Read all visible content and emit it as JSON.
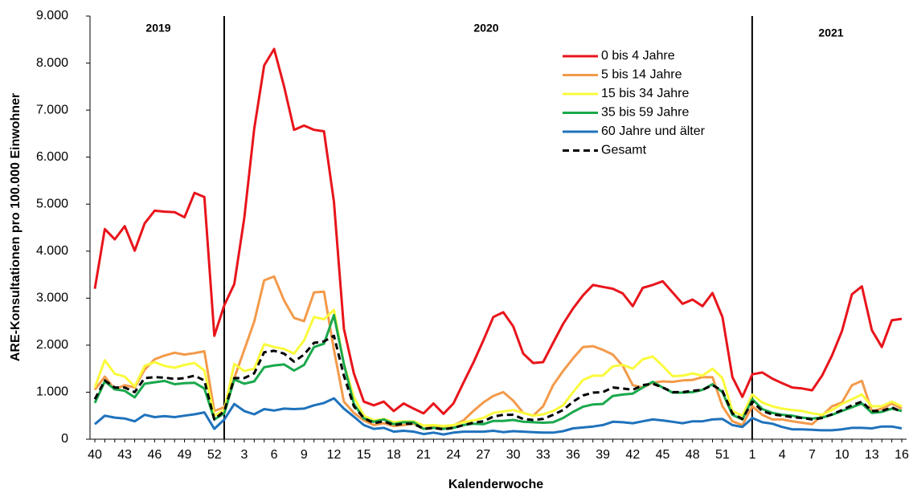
{
  "chart_data": {
    "type": "line",
    "y_label": "ARE-Konsultationen pro 100.000 Einwohner",
    "x_label": "Kalenderwoche",
    "annotations": [
      "2019",
      "2020",
      "2021"
    ],
    "categories": [
      "40",
      null,
      null,
      "43",
      null,
      null,
      "46",
      null,
      null,
      "49",
      null,
      null,
      "52",
      null,
      null,
      "3",
      null,
      null,
      "6",
      null,
      null,
      "9",
      null,
      null,
      "12",
      null,
      null,
      "15",
      null,
      null,
      "18",
      null,
      null,
      "21",
      null,
      null,
      "24",
      null,
      null,
      "27",
      null,
      null,
      "30",
      null,
      null,
      "33",
      null,
      null,
      "36",
      null,
      null,
      "39",
      null,
      null,
      "42",
      null,
      null,
      "45",
      null,
      null,
      "48",
      null,
      null,
      "51",
      null,
      null,
      "1",
      null,
      null,
      "4",
      null,
      null,
      "7",
      null,
      null,
      "10",
      null,
      null,
      "13",
      null,
      null,
      "16"
    ],
    "ylim": [
      0,
      9000
    ],
    "yticks": [
      0,
      {
        "value": 1000,
        "label": "1.000"
      },
      {
        "value": 2000,
        "label": "2.000"
      },
      {
        "value": 3000,
        "label": "3.000"
      },
      {
        "value": 4000,
        "label": "4.000"
      },
      {
        "value": 5000,
        "label": "5.000"
      },
      {
        "value": 6000,
        "label": "6.000"
      },
      {
        "value": 7000,
        "label": "7.000"
      },
      {
        "value": 8000,
        "label": "8.000"
      },
      {
        "value": 9000,
        "label": "9.000"
      }
    ],
    "legend_position": "upper right",
    "series": [
      {
        "name": "0 bis 4 Jahre",
        "color": "#e8141b",
        "values": [
          3200,
          4470,
          4250,
          4530,
          4010,
          4590,
          4860,
          4840,
          4830,
          4720,
          5240,
          5150,
          2200,
          2850,
          3300,
          4700,
          6600,
          7950,
          8300,
          7500,
          6580,
          6670,
          6580,
          6550,
          5050,
          2350,
          1400,
          800,
          720,
          800,
          600,
          760,
          650,
          550,
          760,
          540,
          760,
          1200,
          1630,
          2100,
          2600,
          2700,
          2400,
          1820,
          1620,
          1640,
          2050,
          2450,
          2780,
          3060,
          3280,
          3240,
          3200,
          3100,
          2830,
          3220,
          3280,
          3360,
          3120,
          2880,
          2970,
          2830,
          3110,
          2600,
          1320,
          900,
          1380,
          1420,
          1290,
          1190,
          1100,
          1080,
          1040,
          1350,
          1780,
          2300,
          3080,
          3250,
          2320,
          1960,
          2530,
          2560
        ]
      },
      {
        "name": "5 bis 14 Jahre",
        "color": "#f39a4a",
        "values": [
          1050,
          1330,
          1060,
          1150,
          1100,
          1480,
          1700,
          1780,
          1840,
          1800,
          1830,
          1870,
          600,
          680,
          1300,
          1900,
          2500,
          3380,
          3460,
          2950,
          2580,
          2510,
          3120,
          3140,
          1900,
          800,
          560,
          400,
          300,
          340,
          280,
          300,
          330,
          220,
          270,
          250,
          290,
          400,
          600,
          780,
          920,
          1000,
          820,
          560,
          500,
          700,
          1150,
          1450,
          1720,
          1960,
          1980,
          1900,
          1800,
          1560,
          1150,
          1100,
          1200,
          1230,
          1220,
          1250,
          1260,
          1320,
          1320,
          700,
          380,
          300,
          700,
          520,
          420,
          420,
          380,
          350,
          320,
          500,
          700,
          780,
          1150,
          1240,
          600,
          650,
          760,
          650
        ]
      },
      {
        "name": "15 bis 34 Jahre",
        "color": "#fafa3c",
        "values": [
          1100,
          1680,
          1390,
          1330,
          1120,
          1560,
          1640,
          1560,
          1520,
          1580,
          1620,
          1460,
          500,
          620,
          1600,
          1450,
          1500,
          2020,
          1960,
          1920,
          1820,
          2100,
          2600,
          2550,
          2750,
          1600,
          900,
          500,
          400,
          430,
          360,
          380,
          380,
          290,
          300,
          280,
          300,
          360,
          400,
          450,
          560,
          590,
          620,
          560,
          500,
          530,
          600,
          720,
          1000,
          1260,
          1350,
          1350,
          1550,
          1580,
          1500,
          1700,
          1760,
          1560,
          1340,
          1350,
          1400,
          1350,
          1500,
          1300,
          600,
          500,
          950,
          780,
          700,
          650,
          620,
          600,
          550,
          520,
          620,
          750,
          850,
          950,
          700,
          700,
          800,
          700
        ]
      },
      {
        "name": "35 bis 59 Jahre",
        "color": "#1aa84c",
        "values": [
          770,
          1230,
          1060,
          1030,
          890,
          1180,
          1210,
          1240,
          1170,
          1190,
          1200,
          1080,
          420,
          550,
          1270,
          1180,
          1230,
          1530,
          1570,
          1590,
          1460,
          1580,
          1960,
          2030,
          2640,
          1600,
          750,
          440,
          370,
          420,
          320,
          360,
          360,
          220,
          240,
          220,
          240,
          300,
          330,
          320,
          390,
          390,
          410,
          370,
          360,
          350,
          360,
          450,
          580,
          690,
          740,
          750,
          920,
          950,
          970,
          1100,
          1220,
          1100,
          990,
          990,
          1000,
          1050,
          1170,
          1000,
          520,
          420,
          850,
          640,
          560,
          520,
          500,
          460,
          440,
          460,
          520,
          600,
          680,
          760,
          560,
          580,
          650,
          600
        ]
      },
      {
        "name": "60 Jahre und älter",
        "color": "#1f72bc",
        "values": [
          320,
          500,
          460,
          440,
          380,
          520,
          470,
          490,
          470,
          500,
          530,
          570,
          220,
          420,
          750,
          600,
          530,
          640,
          610,
          650,
          640,
          650,
          720,
          770,
          870,
          650,
          480,
          300,
          220,
          240,
          160,
          180,
          160,
          110,
          140,
          100,
          140,
          160,
          160,
          160,
          180,
          150,
          170,
          160,
          150,
          140,
          140,
          170,
          230,
          250,
          270,
          300,
          370,
          360,
          340,
          380,
          420,
          400,
          370,
          340,
          380,
          380,
          420,
          430,
          300,
          260,
          450,
          360,
          330,
          260,
          210,
          210,
          200,
          190,
          190,
          210,
          240,
          240,
          230,
          270,
          270,
          230
        ]
      },
      {
        "name": "Gesamt",
        "color": "#000000",
        "dashed": true,
        "values": [
          850,
          1250,
          1100,
          1100,
          1000,
          1300,
          1320,
          1310,
          1280,
          1300,
          1350,
          1250,
          420,
          600,
          1300,
          1300,
          1400,
          1850,
          1880,
          1820,
          1650,
          1800,
          2050,
          2080,
          2200,
          1350,
          700,
          450,
          340,
          380,
          300,
          330,
          330,
          220,
          240,
          210,
          240,
          300,
          350,
          380,
          480,
          520,
          520,
          430,
          410,
          430,
          520,
          620,
          800,
          930,
          990,
          1000,
          1100,
          1080,
          1050,
          1150,
          1180,
          1100,
          1000,
          1000,
          1030,
          1050,
          1150,
          1030,
          550,
          430,
          800,
          600,
          530,
          500,
          470,
          450,
          420,
          450,
          530,
          620,
          720,
          800,
          600,
          600,
          680,
          580
        ]
      }
    ]
  }
}
